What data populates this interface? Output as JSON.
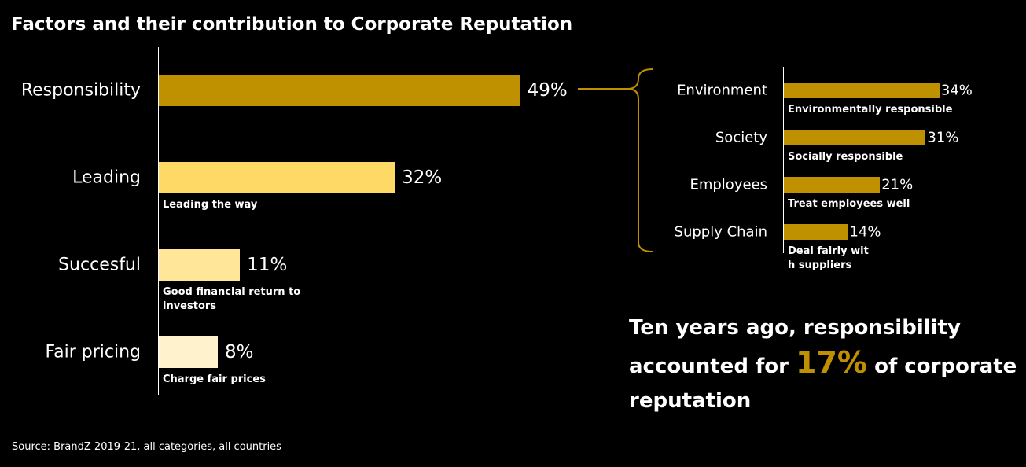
{
  "chart_data": [
    {
      "type": "hbar",
      "title": "Factors and their contribution to Corporate Reputation",
      "categories": [
        "Responsibility",
        "Leading",
        "Succesful",
        "Fair pricing"
      ],
      "values": [
        49,
        32,
        11,
        8
      ],
      "value_labels": [
        "49%",
        "32%",
        "11%",
        "8%"
      ],
      "descriptions": [
        null,
        "Leading the way",
        "Good financial return to investors",
        "Charge fair prices"
      ],
      "colors": [
        "#bf9000",
        "#ffd966",
        "#ffe699",
        "#fff2cc"
      ]
    },
    {
      "type": "hbar",
      "categories": [
        "Environment",
        "Society",
        "Employees",
        "Supply Chain"
      ],
      "values": [
        34,
        31,
        21,
        14
      ],
      "value_labels": [
        "34%",
        "31%",
        "21%",
        "14%"
      ],
      "descriptions": [
        "Environmentally responsible",
        "Socially responsible",
        "Treat employees well",
        "Deal fairly wit\nh suppliers"
      ],
      "color": "#bf9000"
    }
  ],
  "annotation": {
    "before": "Ten years ago, responsibility accounted for",
    "highlight": "17%",
    "after": "of corporate reputation"
  },
  "source": "Source: BrandZ 2019-21, all categories, all countries"
}
